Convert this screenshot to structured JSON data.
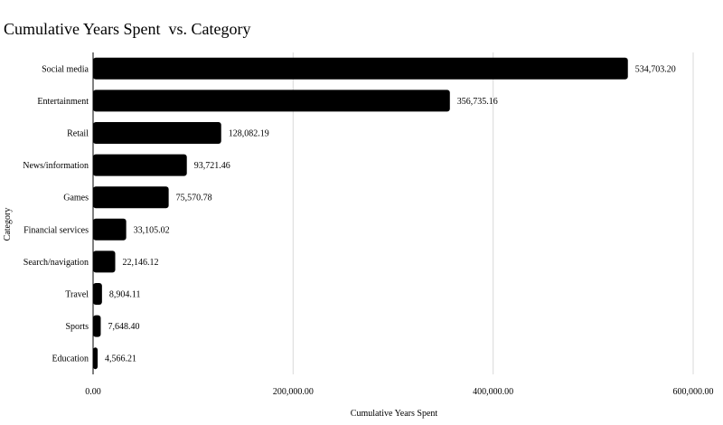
{
  "chart_data": {
    "type": "bar",
    "orientation": "horizontal",
    "title": "Cumulative Years Spent  vs. Category",
    "xlabel": "Cumulative Years Spent",
    "ylabel": "Category",
    "categories": [
      "Social media",
      "Entertainment",
      "Retail",
      "News/information",
      "Games",
      "Financial services",
      "Search/navigation",
      "Travel",
      "Sports",
      "Education"
    ],
    "values": [
      534703.2,
      356735.16,
      128082.19,
      93721.46,
      75570.78,
      33105.02,
      22146.12,
      8904.11,
      7648.4,
      4566.21
    ],
    "value_labels": [
      "534,703.20",
      "356,735.16",
      "128,082.19",
      "93,721.46",
      "75,570.78",
      "33,105.02",
      "22,146.12",
      "8,904.11",
      "7,648.40",
      "4,566.21"
    ],
    "xlim": [
      0,
      600000
    ],
    "x_ticks": [
      0,
      200000,
      400000,
      600000
    ],
    "x_tick_labels": [
      "0.00",
      "200,000.00",
      "400,000.00",
      "600,000.00"
    ],
    "grid": "vertical",
    "bar_color": "#000000",
    "grid_color": "#d9d9d9"
  }
}
